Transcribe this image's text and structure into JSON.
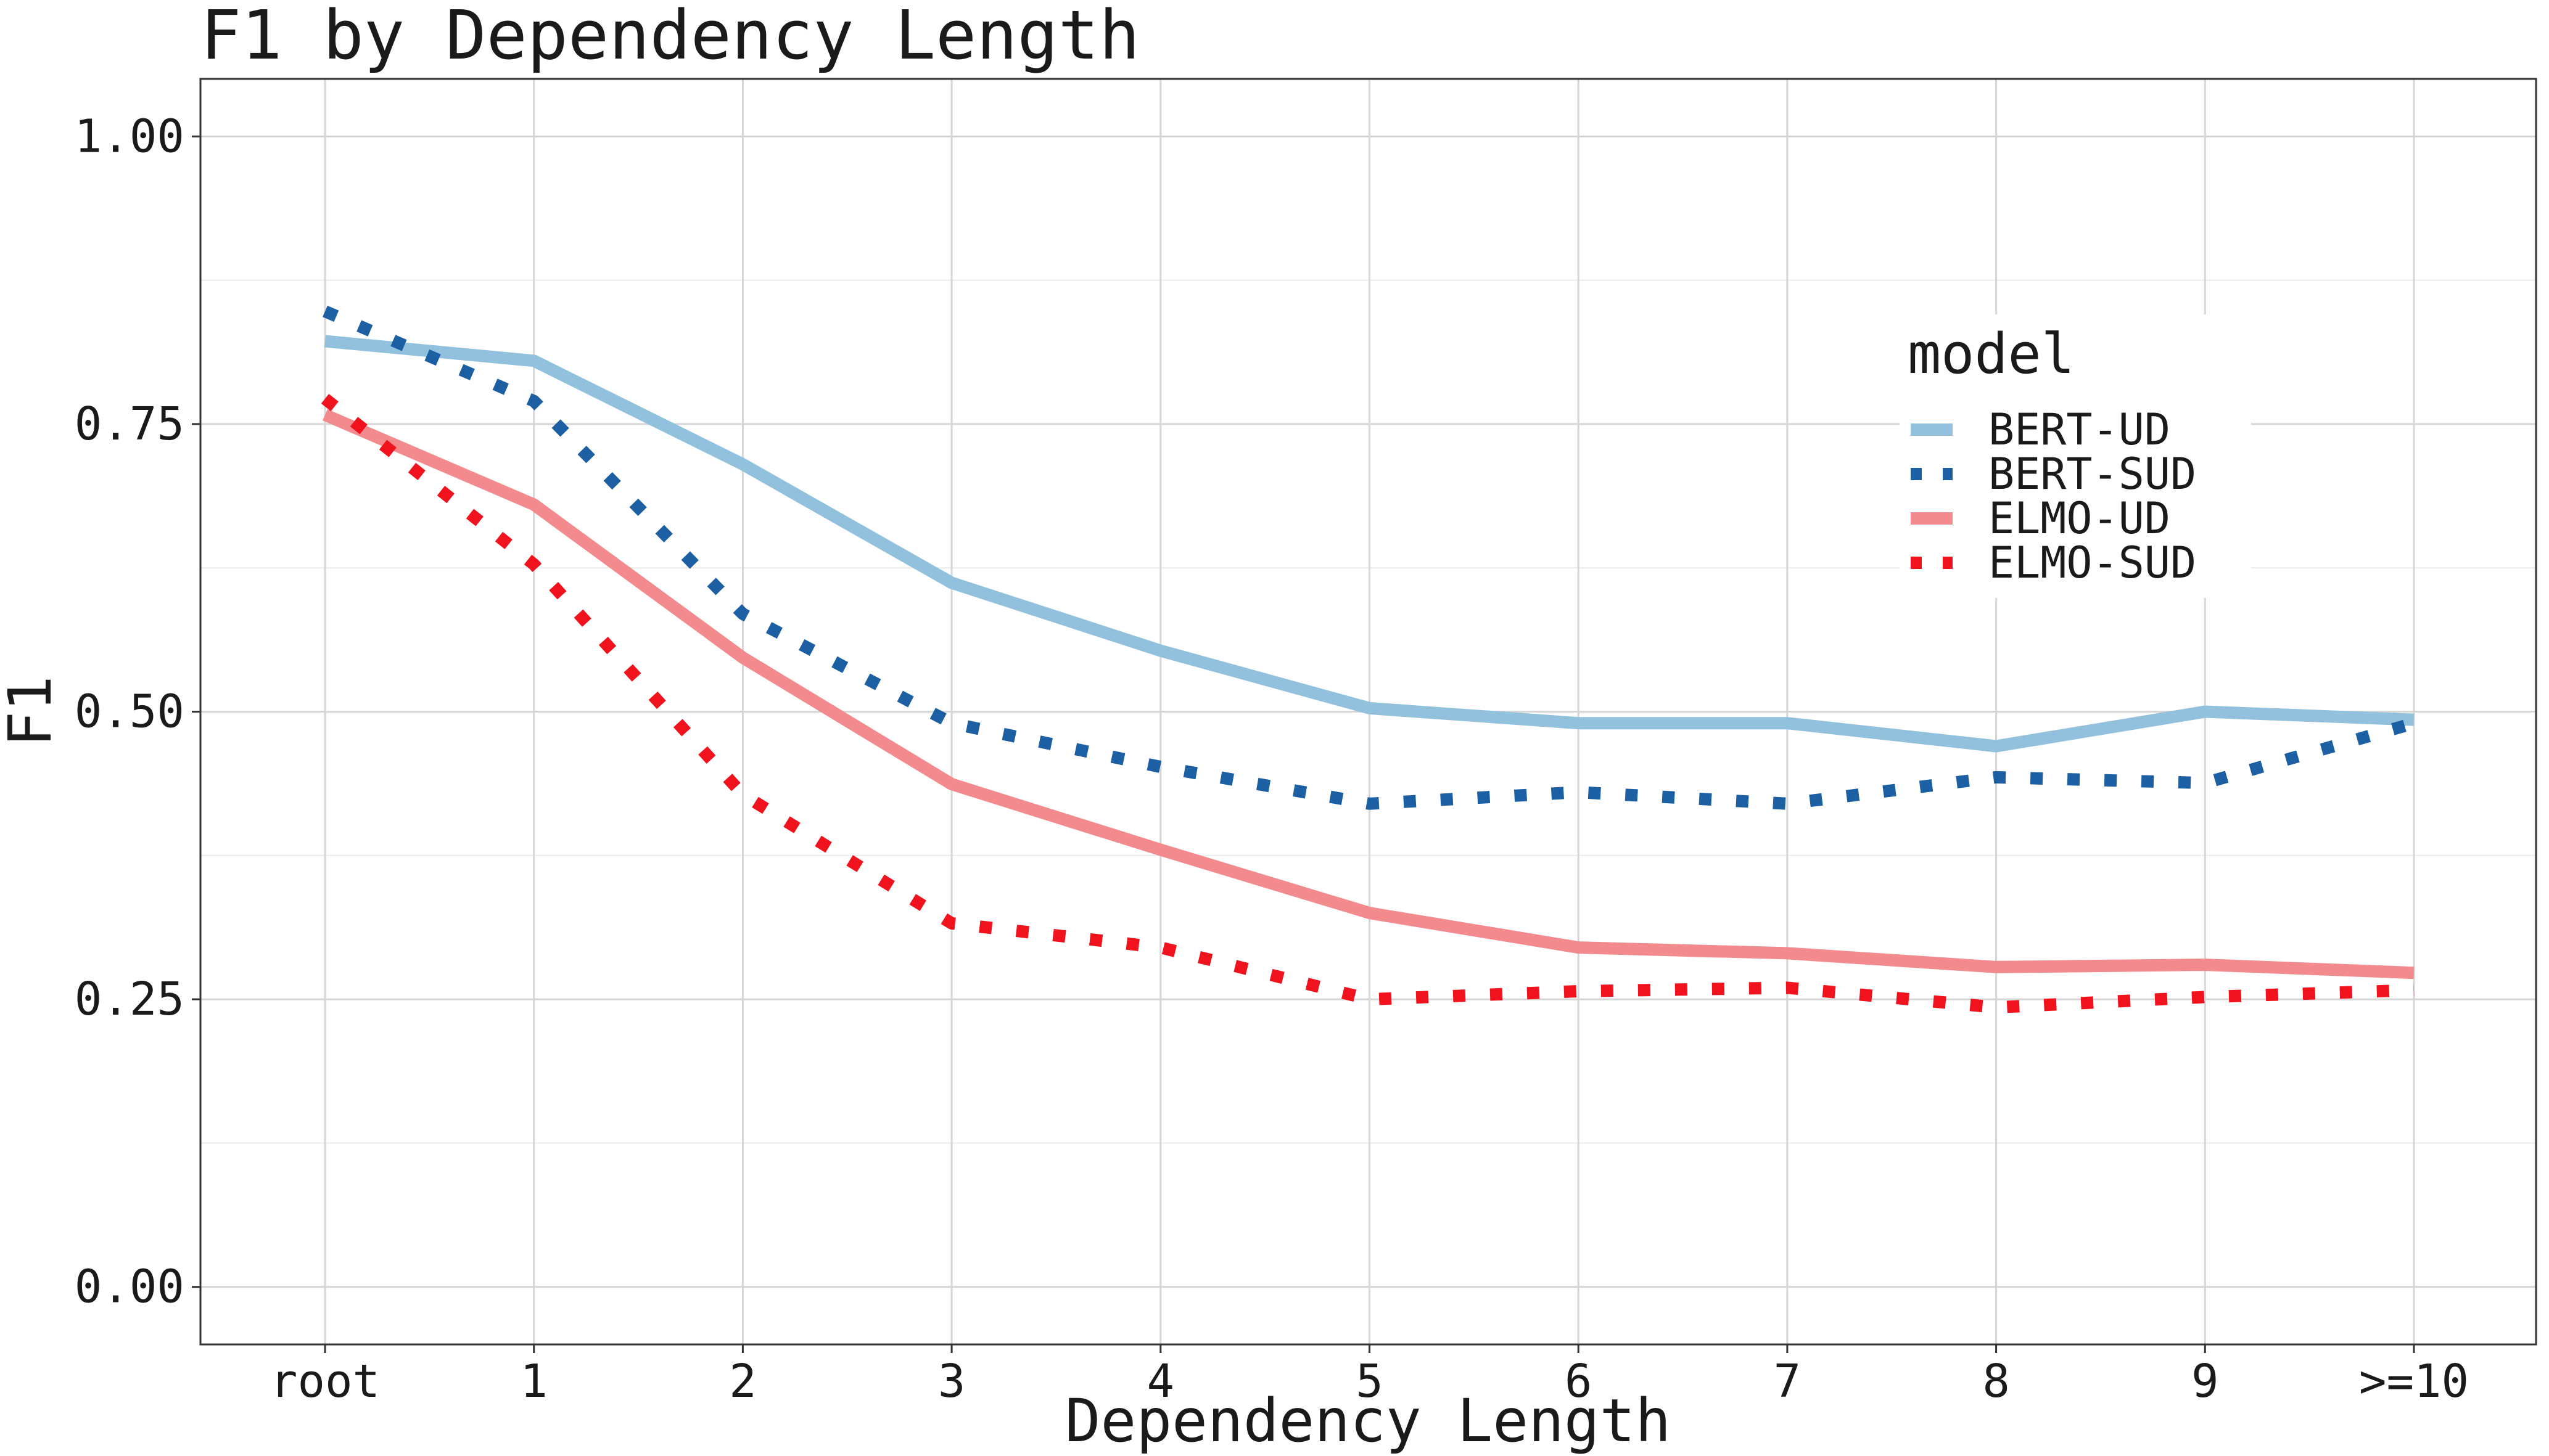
{
  "chart_data": {
    "type": "line",
    "title": "F1 by Dependency Length",
    "xlabel": "Dependency Length",
    "ylabel": "F1",
    "categories": [
      "root",
      "1",
      "2",
      "3",
      "4",
      "5",
      "6",
      "7",
      "8",
      "9",
      ">=10"
    ],
    "ylim": [
      -0.05,
      1.05
    ],
    "yticks": [
      "0.00",
      "0.25",
      "0.50",
      "0.75",
      "1.00"
    ],
    "grid": true,
    "legend": {
      "title": "model",
      "position": "right"
    },
    "series": [
      {
        "name": "BERT-UD",
        "color": "#92c1de",
        "dash": "solid",
        "values": [
          0.822,
          0.805,
          0.715,
          0.612,
          0.553,
          0.503,
          0.49,
          0.49,
          0.47,
          0.5,
          0.493
        ]
      },
      {
        "name": "BERT-SUD",
        "color": "#1c5fa3",
        "dash": "dotted",
        "values": [
          0.848,
          0.77,
          0.585,
          0.49,
          0.452,
          0.42,
          0.43,
          0.42,
          0.443,
          0.438,
          0.49
        ]
      },
      {
        "name": "ELMO-UD",
        "color": "#f28a8e",
        "dash": "solid",
        "values": [
          0.758,
          0.68,
          0.547,
          0.437,
          0.38,
          0.325,
          0.295,
          0.29,
          0.278,
          0.28,
          0.273
        ]
      },
      {
        "name": "ELMO-SUD",
        "color": "#f0121c",
        "dash": "dotted",
        "values": [
          0.772,
          0.628,
          0.428,
          0.316,
          0.295,
          0.25,
          0.257,
          0.26,
          0.243,
          0.252,
          0.258
        ]
      }
    ]
  }
}
